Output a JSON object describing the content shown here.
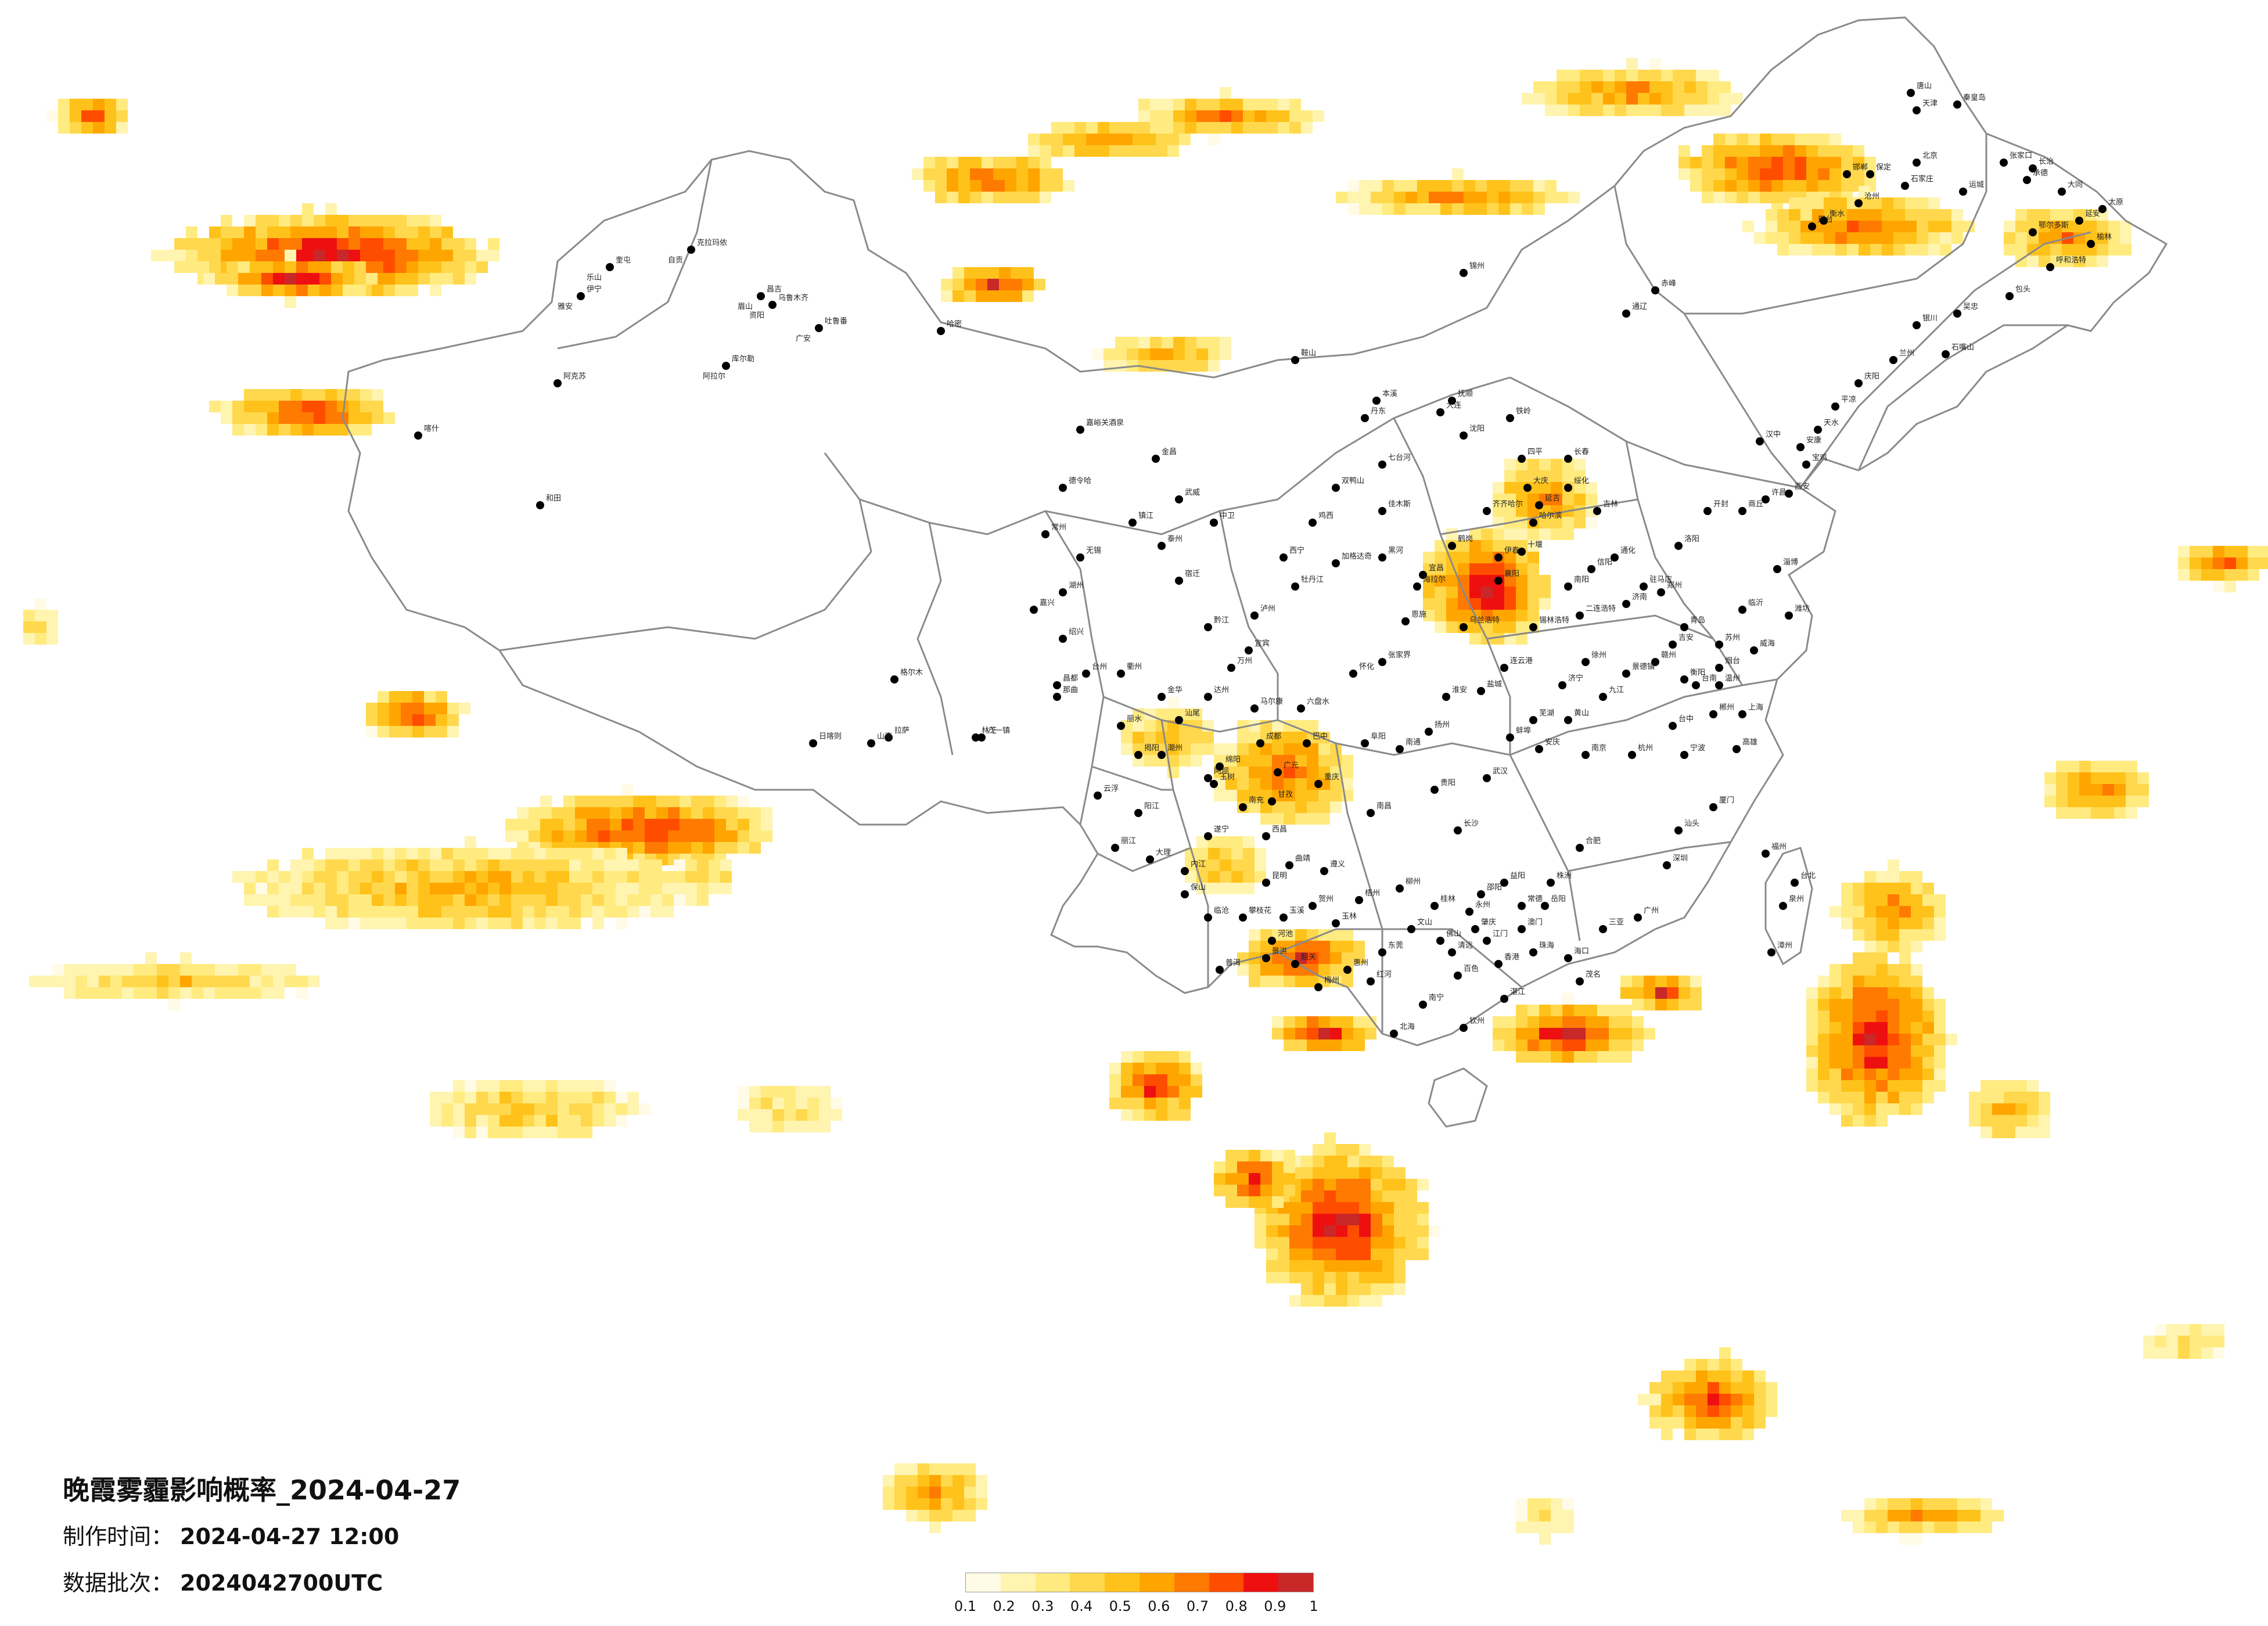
{
  "title": "晚霞雾霾影响概率_2024-04-27",
  "made_time": {
    "label": "制作时间：",
    "value": "2024-04-27 12:00"
  },
  "batch": {
    "label": "数据批次：",
    "value": "2024042700UTC"
  },
  "legend": {
    "ticks": [
      "0.1",
      "0.2",
      "0.3",
      "0.4",
      "0.5",
      "0.6",
      "0.7",
      "0.8",
      "0.9",
      "1"
    ],
    "colors": [
      "#fffbe6",
      "#fff4b0",
      "#ffeb80",
      "#ffd84d",
      "#ffc21a",
      "#ffa500",
      "#ff7a00",
      "#ff4d00",
      "#ee1010",
      "#c82828"
    ]
  },
  "cities": [
    "克拉玛依",
    "奎屯",
    "伊宁",
    "昌吉",
    "乌鲁木齐",
    "吐鲁番",
    "库尔勒",
    "阿克苏",
    "喀什",
    "和田",
    "哈密",
    "嘉峪关酒泉",
    "金昌",
    "武威",
    "中卫",
    "格尔木",
    "德令哈",
    "西宁",
    "拉萨",
    "日喀则",
    "山南",
    "林芝",
    "八一镇",
    "那曲",
    "昌都",
    "玉树",
    "马尔康",
    "阿坝",
    "甘孜",
    "西昌",
    "攀枝花",
    "丽江",
    "大理",
    "保山",
    "临沧",
    "普洱",
    "景洪",
    "昆明",
    "曲靖",
    "玉溪",
    "红河",
    "文山",
    "百色",
    "南宁",
    "北海",
    "钦州",
    "湛江",
    "茂名",
    "海口",
    "三亚",
    "广州",
    "深圳",
    "汕头",
    "厦门",
    "福州",
    "泉州",
    "漳州",
    "台北",
    "台中",
    "台南",
    "高雄",
    "杭州",
    "宁波",
    "温州",
    "上海",
    "苏州",
    "南京",
    "合肥",
    "武汉",
    "长沙",
    "南昌",
    "贵阳",
    "遵义",
    "重庆",
    "成都",
    "绵阳",
    "宜宾",
    "泸州",
    "六盘水",
    "怀化",
    "张家界",
    "恩施",
    "宜昌",
    "襄阳",
    "十堰",
    "南阳",
    "信阳",
    "驻马店",
    "郑州",
    "洛阳",
    "开封",
    "商丘",
    "许昌",
    "西安",
    "宝鸡",
    "汉中",
    "安康",
    "天水",
    "平凉",
    "庆阳",
    "兰州",
    "银川",
    "石嘴山",
    "吴忠",
    "包头",
    "呼和浩特",
    "鄂尔多斯",
    "榆林",
    "延安",
    "太原",
    "大同",
    "长治",
    "运城",
    "石家庄",
    "保定",
    "邯郸",
    "邢台",
    "衡水",
    "沧州",
    "北京",
    "天津",
    "唐山",
    "秦皇岛",
    "张家口",
    "承德",
    "赤峰",
    "通辽",
    "锦州",
    "沈阳",
    "大连",
    "丹东",
    "鞍山",
    "本溪",
    "抚顺",
    "铁岭",
    "四平",
    "长春",
    "吉林",
    "通化",
    "延吉",
    "哈尔滨",
    "齐齐哈尔",
    "大庆",
    "绥化",
    "伊春",
    "鹤岗",
    "佳木斯",
    "双鸭山",
    "七台河",
    "鸡西",
    "牡丹江",
    "黑河",
    "加格达奇",
    "海拉尔",
    "乌兰浩特",
    "锡林浩特",
    "二连浩特",
    "济南",
    "青岛",
    "烟台",
    "威海",
    "潍坊",
    "淄博",
    "临沂",
    "济宁",
    "徐州",
    "连云港",
    "盐城",
    "淮安",
    "扬州",
    "南通",
    "阜阳",
    "蚌埠",
    "芜湖",
    "安庆",
    "黄山",
    "九江",
    "景德镇",
    "赣州",
    "吉安",
    "衡阳",
    "郴州",
    "株洲",
    "岳阳",
    "常德",
    "益阳",
    "邵阳",
    "永州",
    "桂林",
    "柳州",
    "梧州",
    "玉林",
    "贺州",
    "河池",
    "韶关",
    "梅州",
    "惠州",
    "东莞",
    "佛山",
    "江门",
    "珠海",
    "澳门",
    "香港",
    "肇庆",
    "清远",
    "云浮",
    "阳江",
    "潮州",
    "揭阳",
    "汕尾",
    "丽水",
    "金华",
    "衢州",
    "台州",
    "绍兴",
    "嘉兴",
    "湖州",
    "无锡",
    "常州",
    "镇江",
    "泰州",
    "宿迁",
    "黔江",
    "万州",
    "达州",
    "巴中",
    "广元",
    "南充",
    "遂宁",
    "内江",
    "自贡",
    "乐山",
    "雅安",
    "眉山",
    "资阳",
    "广安",
    "阿拉尔"
  ]
}
